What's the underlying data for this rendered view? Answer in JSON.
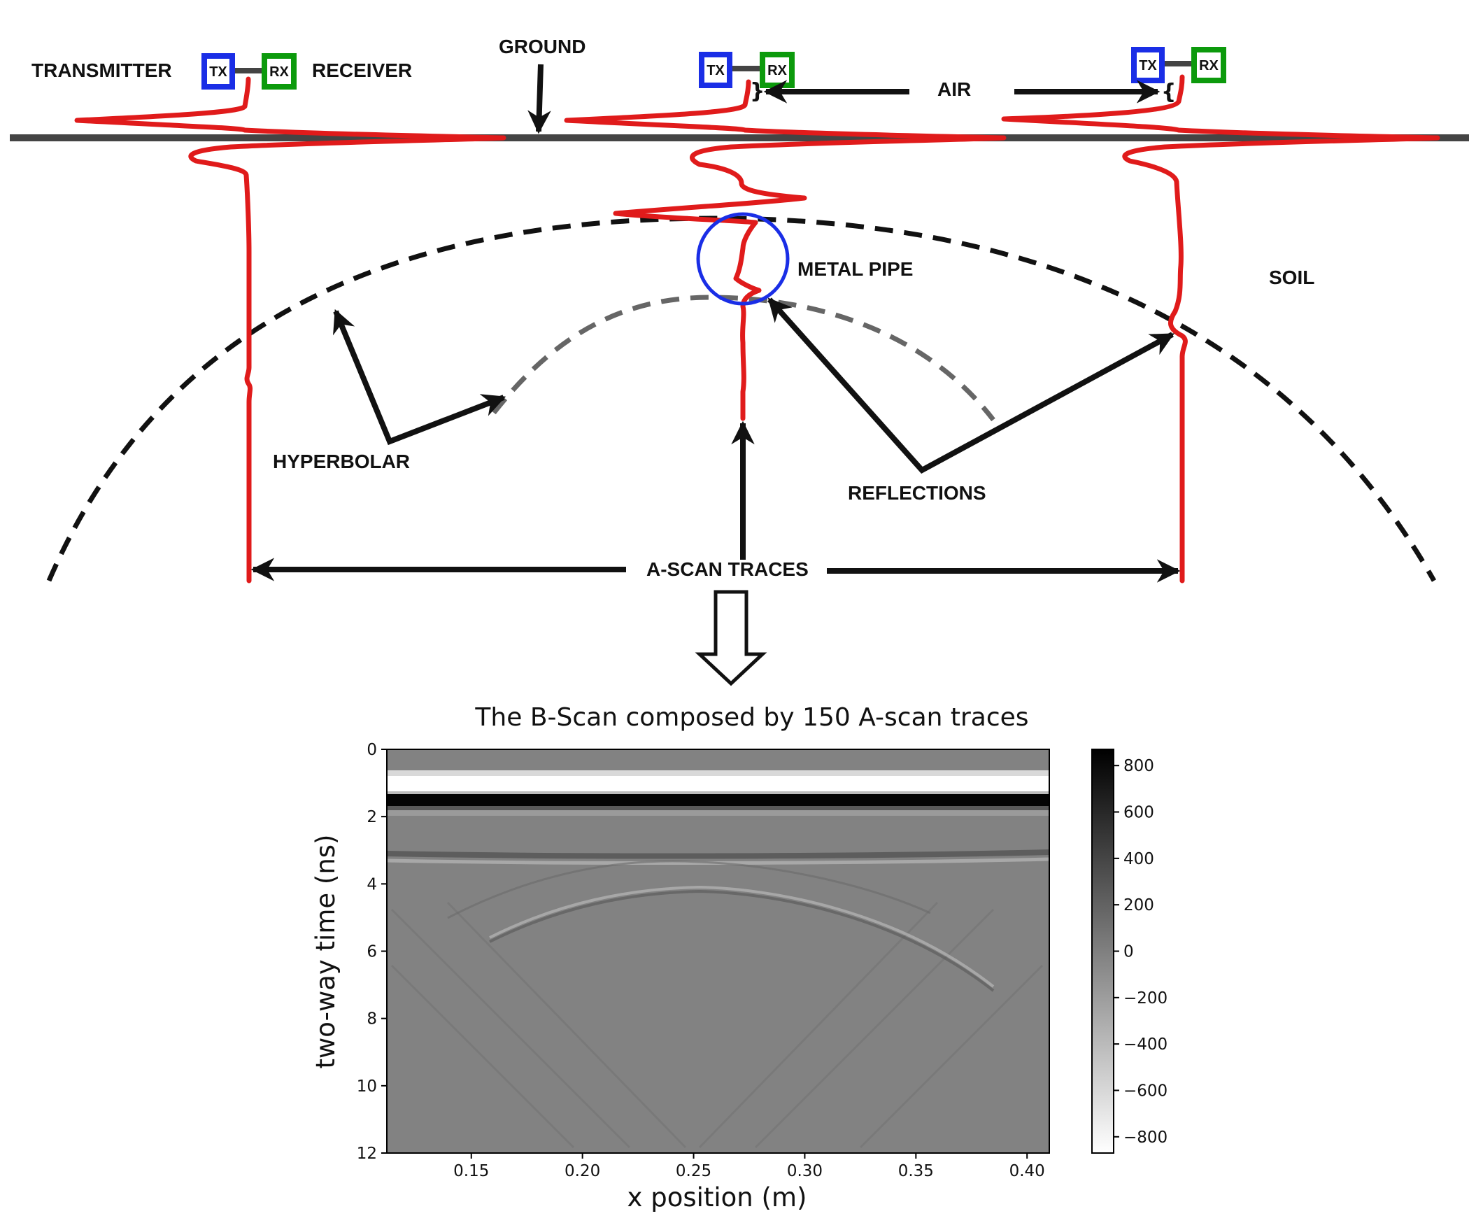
{
  "labels": {
    "transmitter": "TRANSMITTER",
    "receiver": "RECEIVER",
    "ground": "GROUND",
    "air": "AIR",
    "metal_pipe": "METAL PIPE",
    "soil": "SOIL",
    "hyperbolar": "HYPERBOLAR",
    "reflections": "REFLECTIONS",
    "a_scan_traces": "A-SCAN TRACES",
    "tx": "TX",
    "rx": "RX",
    "brace_close": "}",
    "brace_open": "{"
  },
  "colors": {
    "transmitter_box": "#1a2ee6",
    "receiver_box": "#0c9a0c",
    "trace": "#e01b1b",
    "ground_line": "#444444",
    "pipe_circle": "#1a2ee6",
    "hyperbola_outer": "#111111",
    "hyperbola_inner": "#666666",
    "arrows": "#111111"
  },
  "chart_data": {
    "type": "heatmap",
    "title": "The B-Scan composed by 150 A-scan traces",
    "xlabel": "x position (m)",
    "ylabel": "two-way time (ns)",
    "xlim": [
      0.112,
      0.41
    ],
    "ylim": [
      12,
      0
    ],
    "xticks": [
      "0.15",
      "0.20",
      "0.25",
      "0.30",
      "0.35",
      "0.40"
    ],
    "xtick_values": [
      0.15,
      0.2,
      0.25,
      0.3,
      0.35,
      0.4
    ],
    "yticks": [
      "0",
      "2",
      "4",
      "6",
      "8",
      "10",
      "12"
    ],
    "ytick_values": [
      0,
      2,
      4,
      6,
      8,
      10,
      12
    ],
    "colorbar": {
      "range": [
        -870,
        870
      ],
      "ticks": [
        "800",
        "600",
        "400",
        "200",
        "0",
        "−200",
        "−400",
        "−600",
        "−800"
      ],
      "tick_values": [
        800,
        600,
        400,
        200,
        0,
        -200,
        -400,
        -600,
        -800
      ],
      "colormap": "gray_r"
    },
    "features": [
      {
        "name": "direct wave negative",
        "time_ns": 1.05,
        "amplitude": -800
      },
      {
        "name": "direct wave positive",
        "time_ns": 1.5,
        "amplitude": 800
      },
      {
        "name": "ground reflection",
        "time_ns": 3.1,
        "amplitude": 200
      },
      {
        "name": "pipe hyperbola",
        "apex_x_m": 0.26,
        "apex_time_ns": 4.2,
        "amplitude": 300
      },
      {
        "name": "secondary hyperbola",
        "apex_x_m": 0.25,
        "apex_time_ns": 3.6,
        "amplitude": 200
      }
    ]
  }
}
